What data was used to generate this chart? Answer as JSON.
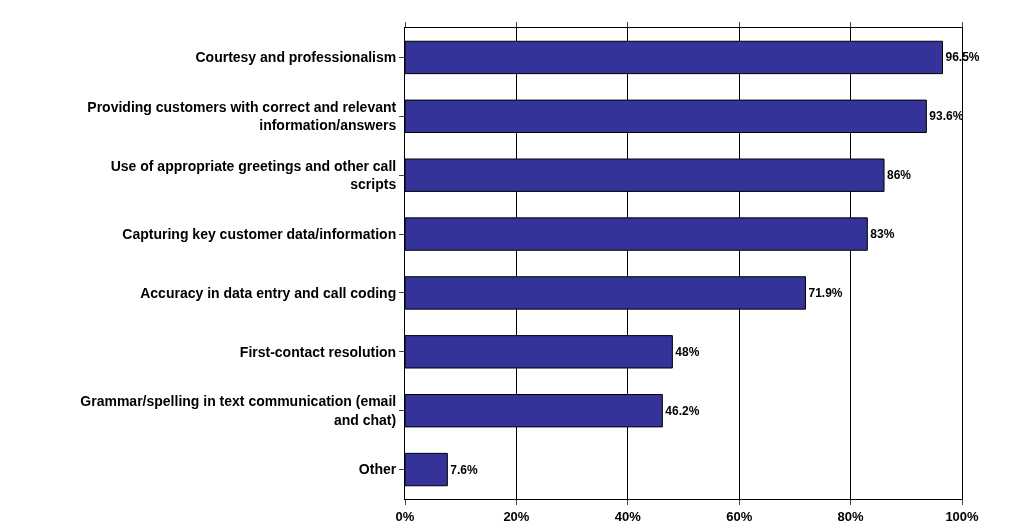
{
  "chart_data": {
    "type": "bar",
    "orientation": "horizontal",
    "categories": [
      "Courtesy and professionalism",
      "Providing customers with correct and relevant information/answers",
      "Use of appropriate greetings and other call scripts",
      "Capturing key customer data/information",
      "Accuracy in data entry and call coding",
      "First-contact resolution",
      "Grammar/spelling in text communication (email and chat)",
      "Other"
    ],
    "values": [
      96.5,
      93.6,
      86,
      83,
      71.9,
      48,
      46.2,
      7.6
    ],
    "value_labels": [
      "96.5%",
      "93.6%",
      "86%",
      "83%",
      "71.9%",
      "48%",
      "46.2%",
      "7.6%"
    ],
    "color": "#333399",
    "xlim": [
      0,
      100
    ],
    "xticks": [
      {
        "value": 0,
        "label": "0%"
      },
      {
        "value": 20,
        "label": "20%"
      },
      {
        "value": 40,
        "label": "40%"
      },
      {
        "value": 60,
        "label": "60%"
      },
      {
        "value": 80,
        "label": "80%"
      },
      {
        "value": 100,
        "label": "100%"
      }
    ],
    "grid": "x"
  }
}
